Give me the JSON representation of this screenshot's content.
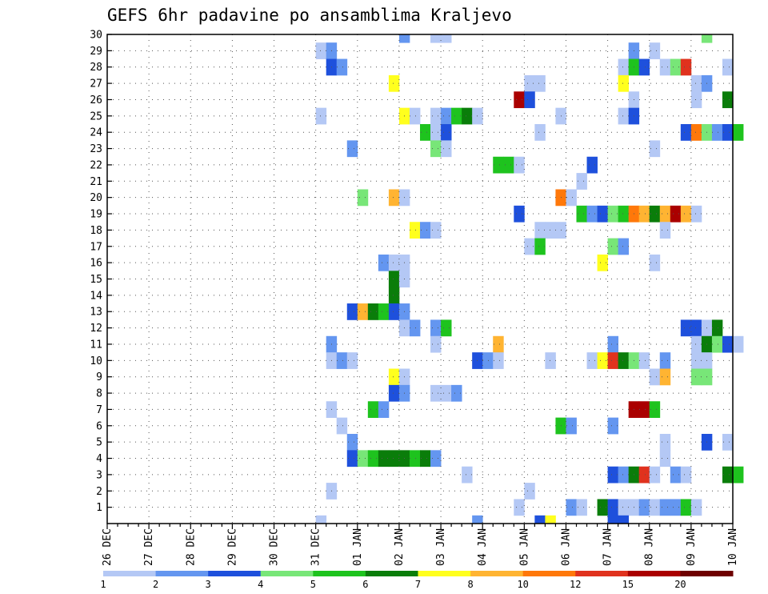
{
  "chart_data": {
    "type": "heatmap",
    "title": "GEFS 6hr padavine po ansamblima Kraljevo",
    "xlabel": "",
    "ylabel": "",
    "x_ticks": [
      "26 DEC",
      "27 DEC",
      "28 DEC",
      "29 DEC",
      "30 DEC",
      "31 DEC",
      "01 JAN",
      "02 JAN",
      "03 JAN",
      "04 JAN",
      "05 JAN",
      "06 JAN",
      "07 JAN",
      "08 JAN",
      "09 JAN",
      "10 JAN"
    ],
    "y_ticks": [
      "1",
      "2",
      "3",
      "4",
      "5",
      "6",
      "7",
      "8",
      "9",
      "10",
      "11",
      "12",
      "13",
      "14",
      "15",
      "16",
      "17",
      "18",
      "19",
      "20",
      "21",
      "22",
      "23",
      "24",
      "25",
      "26",
      "27",
      "28",
      "29",
      "30"
    ],
    "xlim_steps": [
      0,
      60
    ],
    "ylim_members": [
      0,
      30
    ],
    "grid": true,
    "legend_position": "bottom",
    "legend": {
      "labels": [
        "1",
        "2",
        "3",
        "4",
        "5",
        "6",
        "7",
        "8",
        "10",
        "12",
        "15",
        "20"
      ],
      "colors": [
        "#b4c8f5",
        "#6496f0",
        "#1e50dc",
        "#78e678",
        "#1ec31e",
        "#0a7d0a",
        "#ffff1e",
        "#ffb432",
        "#ff780a",
        "#e0321e",
        "#aa0000",
        "#6e0000"
      ]
    },
    "cell_note": "cells: [step_index (6h steps after 26 DEC 00z), ensemble member, precipitation class index into legend colors]",
    "cells": [
      [
        28,
        30,
        1
      ],
      [
        31,
        30,
        0
      ],
      [
        32,
        30,
        0
      ],
      [
        57,
        30,
        3
      ],
      [
        20,
        29,
        0
      ],
      [
        21,
        29,
        1
      ],
      [
        50,
        29,
        1
      ],
      [
        52,
        29,
        0
      ],
      [
        21,
        28,
        2
      ],
      [
        22,
        28,
        1
      ],
      [
        49,
        28,
        0
      ],
      [
        50,
        28,
        4
      ],
      [
        51,
        28,
        2
      ],
      [
        53,
        28,
        0
      ],
      [
        54,
        28,
        3
      ],
      [
        55,
        28,
        9
      ],
      [
        59,
        28,
        0
      ],
      [
        27,
        27,
        6
      ],
      [
        40,
        27,
        0
      ],
      [
        41,
        27,
        0
      ],
      [
        49,
        27,
        6
      ],
      [
        56,
        27,
        0
      ],
      [
        57,
        27,
        1
      ],
      [
        39,
        26,
        10
      ],
      [
        40,
        26,
        2
      ],
      [
        50,
        26,
        0
      ],
      [
        56,
        26,
        0
      ],
      [
        59,
        26,
        5
      ],
      [
        20,
        25,
        0
      ],
      [
        28,
        25,
        6
      ],
      [
        29,
        25,
        0
      ],
      [
        31,
        25,
        0
      ],
      [
        32,
        25,
        1
      ],
      [
        33,
        25,
        4
      ],
      [
        34,
        25,
        5
      ],
      [
        35,
        25,
        0
      ],
      [
        43,
        25,
        0
      ],
      [
        49,
        25,
        0
      ],
      [
        50,
        25,
        2
      ],
      [
        30,
        24,
        4
      ],
      [
        31,
        24,
        0
      ],
      [
        32,
        24,
        2
      ],
      [
        41,
        24,
        0
      ],
      [
        55,
        24,
        2
      ],
      [
        56,
        24,
        8
      ],
      [
        57,
        24,
        3
      ],
      [
        58,
        24,
        1
      ],
      [
        59,
        24,
        2
      ],
      [
        60,
        24,
        4
      ],
      [
        23,
        23,
        1
      ],
      [
        31,
        23,
        3
      ],
      [
        32,
        23,
        0
      ],
      [
        52,
        23,
        0
      ],
      [
        37,
        22,
        4
      ],
      [
        38,
        22,
        4
      ],
      [
        39,
        22,
        0
      ],
      [
        46,
        22,
        2
      ],
      [
        45,
        21,
        0
      ],
      [
        24,
        20,
        3
      ],
      [
        27,
        20,
        7
      ],
      [
        28,
        20,
        0
      ],
      [
        43,
        20,
        8
      ],
      [
        44,
        20,
        0
      ],
      [
        39,
        19,
        2
      ],
      [
        45,
        19,
        4
      ],
      [
        46,
        19,
        1
      ],
      [
        47,
        19,
        2
      ],
      [
        48,
        19,
        3
      ],
      [
        49,
        19,
        4
      ],
      [
        50,
        19,
        8
      ],
      [
        51,
        19,
        7
      ],
      [
        52,
        19,
        5
      ],
      [
        53,
        19,
        7
      ],
      [
        54,
        19,
        10
      ],
      [
        55,
        19,
        7
      ],
      [
        56,
        19,
        0
      ],
      [
        29,
        18,
        6
      ],
      [
        30,
        18,
        1
      ],
      [
        31,
        18,
        0
      ],
      [
        41,
        18,
        0
      ],
      [
        42,
        18,
        0
      ],
      [
        43,
        18,
        0
      ],
      [
        53,
        18,
        0
      ],
      [
        40,
        17,
        0
      ],
      [
        41,
        17,
        4
      ],
      [
        48,
        17,
        3
      ],
      [
        49,
        17,
        1
      ],
      [
        26,
        16,
        1
      ],
      [
        27,
        16,
        0
      ],
      [
        28,
        16,
        0
      ],
      [
        47,
        16,
        6
      ],
      [
        52,
        16,
        0
      ],
      [
        27,
        15,
        5
      ],
      [
        28,
        15,
        0
      ],
      [
        27,
        14,
        5
      ],
      [
        23,
        13,
        2
      ],
      [
        24,
        13,
        7
      ],
      [
        25,
        13,
        5
      ],
      [
        26,
        13,
        4
      ],
      [
        27,
        13,
        2
      ],
      [
        28,
        13,
        1
      ],
      [
        28,
        12,
        0
      ],
      [
        29,
        12,
        1
      ],
      [
        31,
        12,
        1
      ],
      [
        32,
        12,
        4
      ],
      [
        55,
        12,
        2
      ],
      [
        56,
        12,
        2
      ],
      [
        57,
        12,
        0
      ],
      [
        58,
        12,
        5
      ],
      [
        21,
        11,
        1
      ],
      [
        31,
        11,
        0
      ],
      [
        37,
        11,
        7
      ],
      [
        48,
        11,
        1
      ],
      [
        56,
        11,
        0
      ],
      [
        57,
        11,
        5
      ],
      [
        58,
        11,
        3
      ],
      [
        59,
        11,
        2
      ],
      [
        60,
        11,
        0
      ],
      [
        21,
        10,
        0
      ],
      [
        22,
        10,
        1
      ],
      [
        23,
        10,
        0
      ],
      [
        35,
        10,
        2
      ],
      [
        36,
        10,
        1
      ],
      [
        37,
        10,
        0
      ],
      [
        42,
        10,
        0
      ],
      [
        46,
        10,
        0
      ],
      [
        47,
        10,
        6
      ],
      [
        48,
        10,
        9
      ],
      [
        49,
        10,
        5
      ],
      [
        50,
        10,
        3
      ],
      [
        51,
        10,
        0
      ],
      [
        53,
        10,
        1
      ],
      [
        56,
        10,
        0
      ],
      [
        57,
        10,
        0
      ],
      [
        27,
        9,
        6
      ],
      [
        28,
        9,
        0
      ],
      [
        52,
        9,
        0
      ],
      [
        53,
        9,
        7
      ],
      [
        56,
        9,
        3
      ],
      [
        57,
        9,
        3
      ],
      [
        27,
        8,
        2
      ],
      [
        28,
        8,
        1
      ],
      [
        31,
        8,
        0
      ],
      [
        32,
        8,
        0
      ],
      [
        33,
        8,
        1
      ],
      [
        21,
        7,
        0
      ],
      [
        25,
        7,
        4
      ],
      [
        26,
        7,
        1
      ],
      [
        50,
        7,
        10
      ],
      [
        51,
        7,
        10
      ],
      [
        52,
        7,
        4
      ],
      [
        22,
        6,
        0
      ],
      [
        43,
        6,
        4
      ],
      [
        44,
        6,
        1
      ],
      [
        48,
        6,
        1
      ],
      [
        23,
        5,
        1
      ],
      [
        53,
        5,
        0
      ],
      [
        57,
        5,
        2
      ],
      [
        59,
        5,
        0
      ],
      [
        23,
        4,
        2
      ],
      [
        24,
        4,
        3
      ],
      [
        25,
        4,
        4
      ],
      [
        26,
        4,
        5
      ],
      [
        27,
        4,
        5
      ],
      [
        28,
        4,
        5
      ],
      [
        29,
        4,
        4
      ],
      [
        30,
        4,
        5
      ],
      [
        31,
        4,
        1
      ],
      [
        53,
        4,
        0
      ],
      [
        34,
        3,
        0
      ],
      [
        48,
        3,
        2
      ],
      [
        49,
        3,
        1
      ],
      [
        50,
        3,
        5
      ],
      [
        51,
        3,
        9
      ],
      [
        52,
        3,
        0
      ],
      [
        54,
        3,
        1
      ],
      [
        55,
        3,
        0
      ],
      [
        59,
        3,
        5
      ],
      [
        60,
        3,
        4
      ],
      [
        21,
        2,
        0
      ],
      [
        40,
        2,
        0
      ],
      [
        39,
        1,
        0
      ],
      [
        44,
        1,
        1
      ],
      [
        45,
        1,
        0
      ],
      [
        47,
        1,
        5
      ],
      [
        48,
        1,
        2
      ],
      [
        49,
        1,
        0
      ],
      [
        50,
        1,
        0
      ],
      [
        51,
        1,
        1
      ],
      [
        52,
        1,
        0
      ],
      [
        53,
        1,
        1
      ],
      [
        54,
        1,
        1
      ],
      [
        55,
        1,
        4
      ],
      [
        56,
        1,
        0
      ],
      [
        20,
        0,
        0
      ],
      [
        35,
        0,
        1
      ],
      [
        41,
        0,
        2
      ],
      [
        42,
        0,
        6
      ],
      [
        48,
        0,
        2
      ],
      [
        49,
        0,
        2
      ]
    ]
  }
}
